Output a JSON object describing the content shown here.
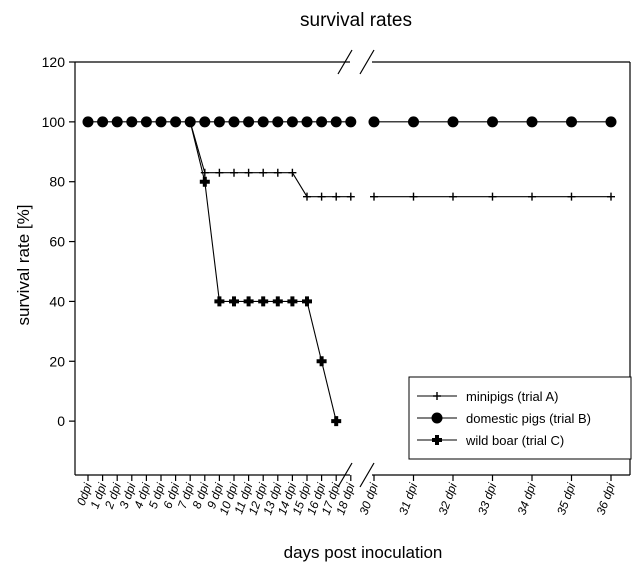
{
  "chart_data": {
    "type": "line",
    "title": "survival rates",
    "xlabel": "days post inoculation",
    "ylabel": "survival rate [%]",
    "ylim": [
      -18,
      120
    ],
    "yticks": [
      0,
      20,
      40,
      60,
      80,
      100,
      120
    ],
    "x_axis_break": "between 18 dpi and 30 dpi",
    "categories": [
      "0dpi",
      "1 dpi",
      "2 dpi",
      "3 dpi",
      "4 dpi",
      "5 dpi",
      "6 dpi",
      "7 dpi",
      "8 dpi",
      "9 dpi",
      "10 dpi",
      "11 dpi",
      "12 dpi",
      "13 dpi",
      "14 dpi",
      "15 dpi",
      "16 dpi",
      "17 dpi",
      "18 dpi",
      "30 dpi",
      "31 dpi",
      "32 dpi",
      "33 dpi",
      "34 dpi",
      "35 dpi",
      "36 dpi"
    ],
    "x": [
      0,
      1,
      2,
      3,
      4,
      5,
      6,
      7,
      8,
      9,
      10,
      11,
      12,
      13,
      14,
      15,
      16,
      17,
      18,
      30,
      31,
      32,
      33,
      34,
      35,
      36
    ],
    "legend_position": "bottom-right",
    "series": [
      {
        "name": "minipigs (trial A)",
        "marker": "plus",
        "x": [
          7,
          8,
          9,
          10,
          11,
          12,
          13,
          14,
          15,
          16,
          17,
          18,
          30,
          31,
          32,
          33,
          34,
          35,
          36
        ],
        "values": [
          100,
          83,
          83,
          83,
          83,
          83,
          83,
          83,
          75,
          75,
          75,
          75,
          75,
          75,
          75,
          75,
          75,
          75,
          75
        ]
      },
      {
        "name": "domestic pigs (trial B)",
        "marker": "circle",
        "x": [
          0,
          1,
          2,
          3,
          4,
          5,
          6,
          7,
          8,
          9,
          10,
          11,
          12,
          13,
          14,
          15,
          16,
          17,
          18,
          30,
          31,
          32,
          33,
          34,
          35,
          36
        ],
        "values": [
          100,
          100,
          100,
          100,
          100,
          100,
          100,
          100,
          100,
          100,
          100,
          100,
          100,
          100,
          100,
          100,
          100,
          100,
          100,
          100,
          100,
          100,
          100,
          100,
          100,
          100
        ]
      },
      {
        "name": "wild boar (trial C)",
        "marker": "thick-cross",
        "x": [
          7,
          8,
          9,
          10,
          11,
          12,
          13,
          14,
          15,
          16,
          17
        ],
        "values": [
          100,
          80,
          40,
          40,
          40,
          40,
          40,
          40,
          40,
          20,
          0
        ]
      }
    ]
  }
}
